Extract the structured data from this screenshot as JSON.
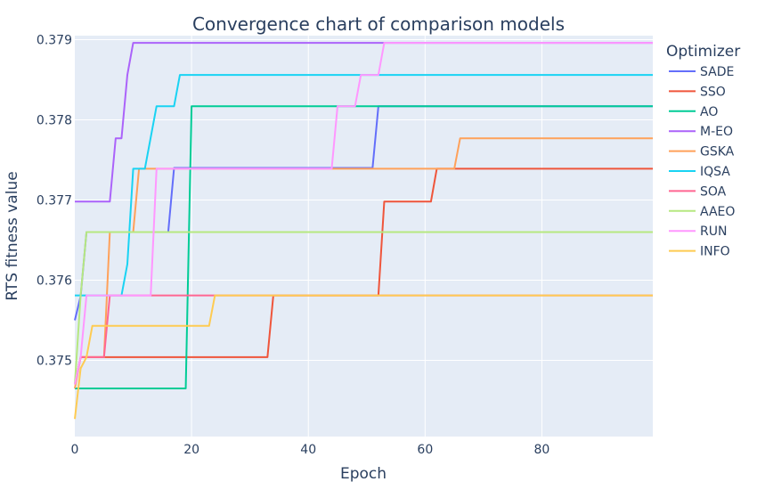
{
  "chart_data": {
    "type": "line",
    "title": "Convergence chart of comparison models",
    "xlabel": "Epoch",
    "ylabel": "RTS fitness value",
    "xlim": [
      0,
      99
    ],
    "ylim": [
      0.37405,
      0.37905
    ],
    "x_ticks": [
      0,
      20,
      40,
      60,
      80
    ],
    "y_ticks": [
      0.375,
      0.376,
      0.377,
      0.378,
      0.379
    ],
    "y_tick_labels": [
      "0.375",
      "0.376",
      "0.377",
      "0.378",
      "0.379"
    ],
    "grid": true,
    "legend_title": "Optimizer",
    "legend_position": "right",
    "series": [
      {
        "name": "SADE",
        "color": "#636efa",
        "points": [
          [
            0,
            0.3755
          ],
          [
            1,
            0.3758
          ],
          [
            2,
            0.3766
          ],
          [
            16,
            0.3766
          ],
          [
            17,
            0.3774
          ],
          [
            51,
            0.3774
          ],
          [
            52,
            0.37817
          ],
          [
            99,
            0.37817
          ]
        ]
      },
      {
        "name": "SSO",
        "color": "#EF553B",
        "points": [
          [
            0,
            0.3747
          ],
          [
            1,
            0.37504
          ],
          [
            33,
            0.37504
          ],
          [
            34,
            0.37581
          ],
          [
            52,
            0.37581
          ],
          [
            53,
            0.37698
          ],
          [
            61,
            0.37698
          ],
          [
            62,
            0.37739
          ],
          [
            99,
            0.37739
          ]
        ]
      },
      {
        "name": "AO",
        "color": "#00cc96",
        "points": [
          [
            0,
            0.37465
          ],
          [
            19,
            0.37465
          ],
          [
            20,
            0.37817
          ],
          [
            99,
            0.37817
          ]
        ]
      },
      {
        "name": "M-EO",
        "color": "#ab63fa",
        "points": [
          [
            0,
            0.37698
          ],
          [
            6,
            0.37698
          ],
          [
            7,
            0.37777
          ],
          [
            8,
            0.37777
          ],
          [
            9,
            0.37856
          ],
          [
            10,
            0.37896
          ],
          [
            99,
            0.37896
          ]
        ]
      },
      {
        "name": "GSKA",
        "color": "#FFA15A",
        "points": [
          [
            0,
            0.37465
          ],
          [
            1,
            0.37504
          ],
          [
            5,
            0.37504
          ],
          [
            6,
            0.3766
          ],
          [
            10,
            0.3766
          ],
          [
            11,
            0.37739
          ],
          [
            65,
            0.37739
          ],
          [
            66,
            0.37777
          ],
          [
            99,
            0.37777
          ]
        ]
      },
      {
        "name": "IQSA",
        "color": "#19d3f3",
        "points": [
          [
            0,
            0.37581
          ],
          [
            8,
            0.37581
          ],
          [
            9,
            0.3762
          ],
          [
            10,
            0.37739
          ],
          [
            12,
            0.37739
          ],
          [
            14,
            0.37817
          ],
          [
            17,
            0.37817
          ],
          [
            18,
            0.37856
          ],
          [
            99,
            0.37856
          ]
        ]
      },
      {
        "name": "SOA",
        "color": "#FF6692",
        "points": [
          [
            0,
            0.3747
          ],
          [
            1,
            0.37504
          ],
          [
            5,
            0.37504
          ],
          [
            6,
            0.37581
          ],
          [
            99,
            0.37581
          ]
        ]
      },
      {
        "name": "AAEO",
        "color": "#B6E880",
        "points": [
          [
            0,
            0.3747
          ],
          [
            1,
            0.37581
          ],
          [
            2,
            0.3766
          ],
          [
            99,
            0.3766
          ]
        ]
      },
      {
        "name": "RUN",
        "color": "#FF97FF",
        "points": [
          [
            0,
            0.3747
          ],
          [
            1,
            0.37504
          ],
          [
            2,
            0.37581
          ],
          [
            13,
            0.37581
          ],
          [
            14,
            0.37739
          ],
          [
            44,
            0.37739
          ],
          [
            45,
            0.37817
          ],
          [
            48,
            0.37817
          ],
          [
            49,
            0.37856
          ],
          [
            52,
            0.37856
          ],
          [
            53,
            0.37896
          ],
          [
            99,
            0.37896
          ]
        ]
      },
      {
        "name": "INFO",
        "color": "#FECB52",
        "points": [
          [
            0,
            0.37427
          ],
          [
            1,
            0.3749
          ],
          [
            2,
            0.37504
          ],
          [
            3,
            0.37543
          ],
          [
            23,
            0.37543
          ],
          [
            24,
            0.37581
          ],
          [
            99,
            0.37581
          ]
        ]
      }
    ]
  }
}
